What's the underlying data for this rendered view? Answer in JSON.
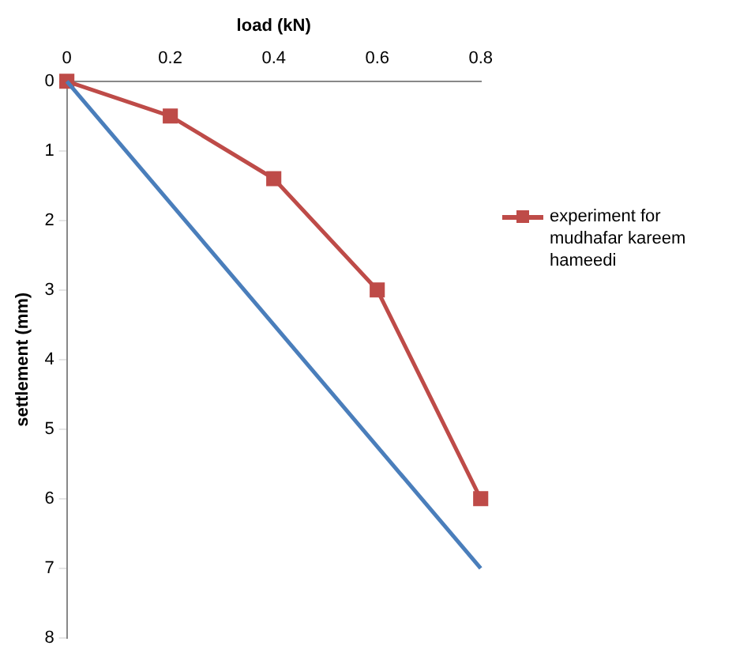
{
  "chart_data": {
    "type": "line",
    "xlabel": "load (kN)",
    "ylabel": "settlement (mm)",
    "xlim": [
      0,
      0.8
    ],
    "xticks": [
      0,
      0.2,
      0.4,
      0.6,
      0.8
    ],
    "ylim": [
      8,
      0
    ],
    "yticks": [
      0,
      1,
      2,
      3,
      4,
      5,
      6,
      7,
      8
    ],
    "grid": false,
    "legend": "right",
    "series": [
      {
        "color": "#4a7ebb",
        "marker": "none",
        "x": [
          0,
          0.8
        ],
        "values": [
          0,
          7
        ]
      },
      {
        "name": "experiment for mudhafar kareem hameedi",
        "color": "#be4b48",
        "marker": "square",
        "x": [
          0,
          0.2,
          0.4,
          0.6,
          0.8
        ],
        "values": [
          0,
          0.5,
          1.4,
          3,
          6
        ]
      }
    ]
  }
}
